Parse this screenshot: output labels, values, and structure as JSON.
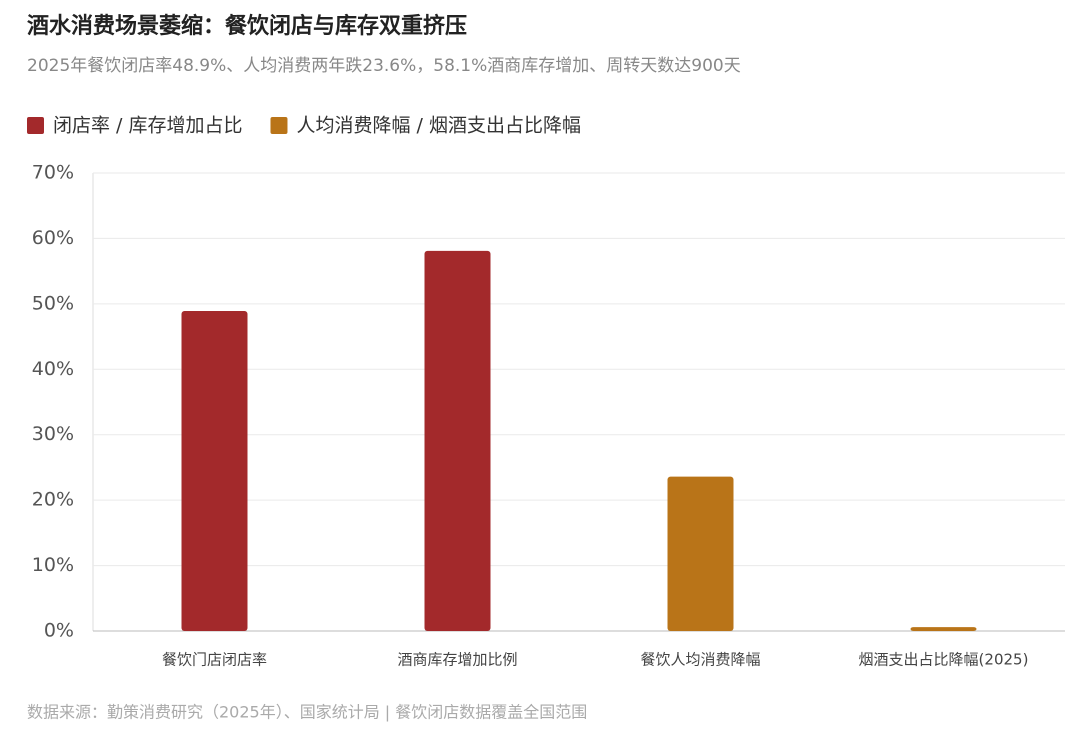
{
  "chart_data": {
    "type": "bar",
    "title": "酒水消费场景萎缩：餐饮闭店与库存双重挤压",
    "subtitle": "2025年餐饮闭店率48.9%、人均消费两年跌23.6%，58.1%酒商库存增加、周转天数达900天",
    "categories": [
      "餐饮门店闭店率",
      "酒商库存增加比例",
      "餐饮人均消费降幅",
      "烟酒支出占比降幅(2025)"
    ],
    "series": [
      {
        "name": "闭店率 / 库存增加占比",
        "color": "#a3292b",
        "values": [
          48.9,
          58.1,
          null,
          null
        ]
      },
      {
        "name": "人均消费降幅 / 烟酒支出占比降幅",
        "color": "#b97418",
        "values": [
          null,
          null,
          23.6,
          0.6
        ]
      }
    ],
    "ylim": [
      0,
      70
    ],
    "yticks": [
      {
        "value": 0,
        "label": "0%"
      },
      {
        "value": 10,
        "label": "10%"
      },
      {
        "value": 20,
        "label": "20%"
      },
      {
        "value": 30,
        "label": "30%"
      },
      {
        "value": 40,
        "label": "40%"
      },
      {
        "value": 50,
        "label": "50%"
      },
      {
        "value": 60,
        "label": "60%"
      },
      {
        "value": 70,
        "label": "70%"
      }
    ],
    "grid": true,
    "source": "数据来源：勤策消费研究（2025年）、国家统计局 | 餐饮闭店数据覆盖全国范围"
  }
}
